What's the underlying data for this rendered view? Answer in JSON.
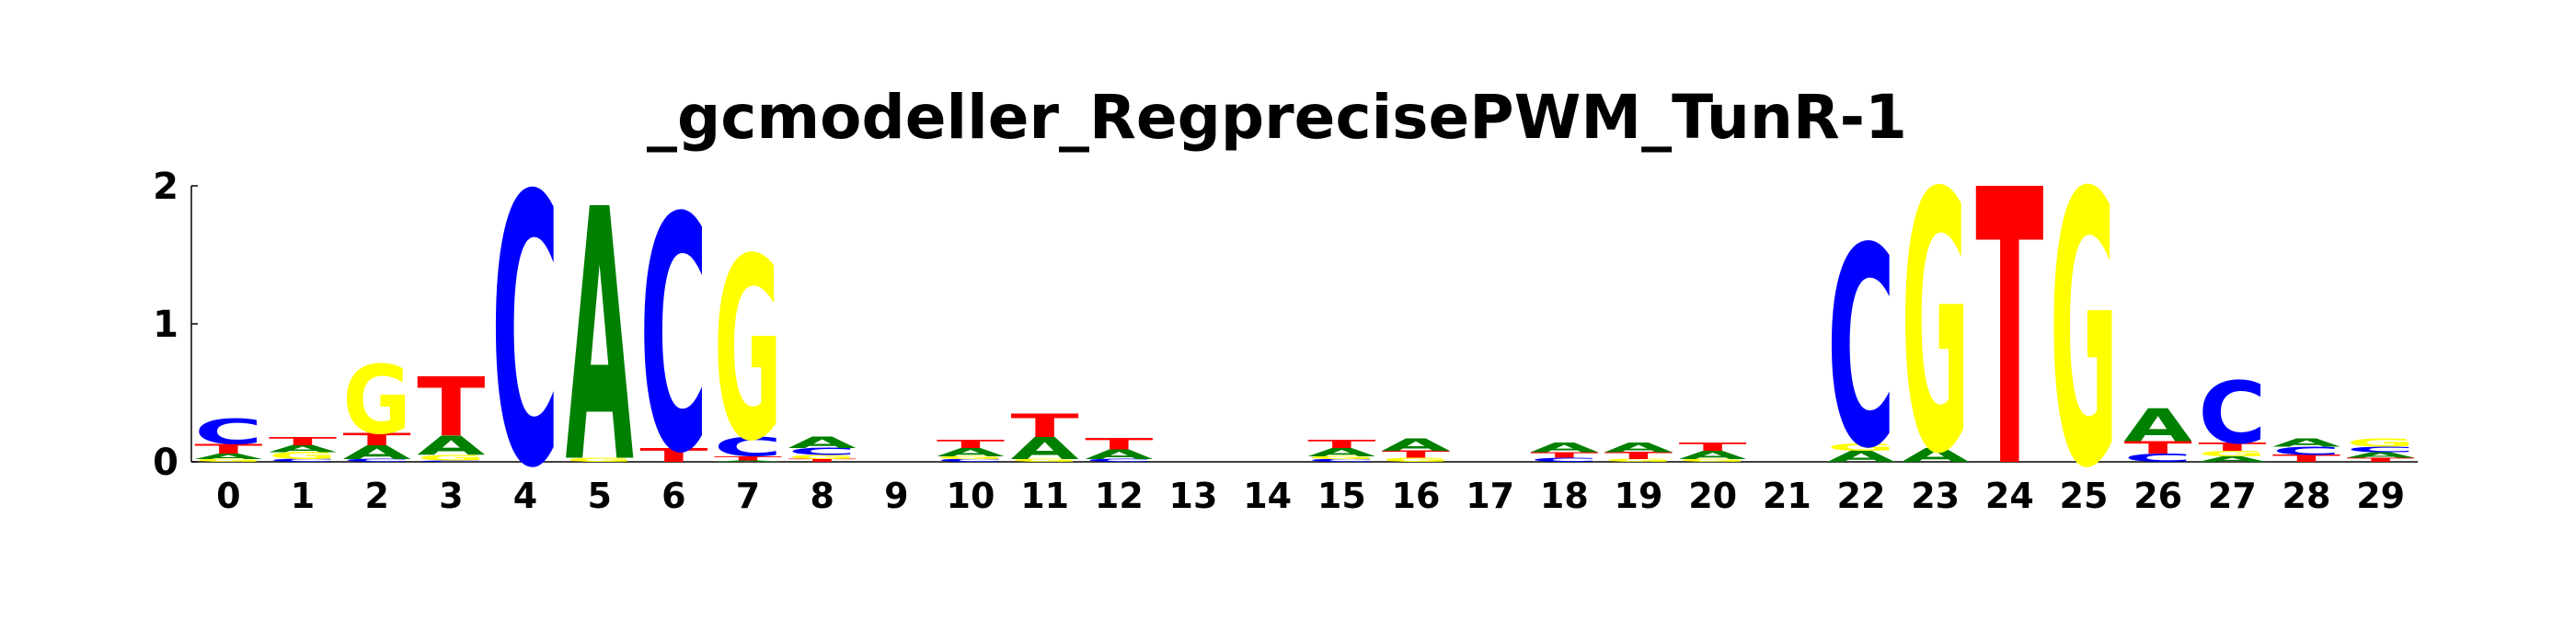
{
  "chart_data": {
    "type": "sequence-logo",
    "title": "_gcmodeller_RegprecisePWM_TunR-1",
    "ylim": [
      0,
      2
    ],
    "y_ticks": [
      "0",
      "1",
      "2"
    ],
    "x_ticks": [
      "0",
      "1",
      "2",
      "3",
      "4",
      "5",
      "6",
      "7",
      "8",
      "9",
      "10",
      "11",
      "12",
      "13",
      "14",
      "15",
      "16",
      "17",
      "18",
      "19",
      "20",
      "21",
      "22",
      "23",
      "24",
      "25",
      "26",
      "27",
      "28",
      "29"
    ],
    "colors": {
      "A": "#008000",
      "C": "#0000ff",
      "G": "#ffff00",
      "T": "#ff0000"
    },
    "positions": [
      [
        [
          "G",
          0.02
        ],
        [
          "A",
          0.04
        ],
        [
          "T",
          0.07
        ],
        [
          "C",
          0.18
        ]
      ],
      [
        [
          "C",
          0.02
        ],
        [
          "G",
          0.05
        ],
        [
          "A",
          0.05
        ],
        [
          "T",
          0.06
        ]
      ],
      [
        [
          "C",
          0.02
        ],
        [
          "A",
          0.1
        ],
        [
          "T",
          0.09
        ],
        [
          "G",
          0.5
        ]
      ],
      [
        [
          "C",
          0.01
        ],
        [
          "G",
          0.04
        ],
        [
          "A",
          0.14
        ],
        [
          "T",
          0.43
        ]
      ],
      [
        [
          "C",
          1.96
        ]
      ],
      [
        [
          "G",
          0.03
        ],
        [
          "A",
          1.83
        ]
      ],
      [
        [
          "T",
          0.1
        ],
        [
          "C",
          1.7
        ]
      ],
      [
        [
          "A",
          0.01
        ],
        [
          "T",
          0.03
        ],
        [
          "C",
          0.14
        ],
        [
          "G",
          1.32
        ]
      ],
      [
        [
          "T",
          0.02
        ],
        [
          "G",
          0.03
        ],
        [
          "C",
          0.05
        ],
        [
          "A",
          0.08
        ]
      ],
      [],
      [
        [
          "C",
          0.02
        ],
        [
          "G",
          0.02
        ],
        [
          "A",
          0.06
        ],
        [
          "T",
          0.06
        ]
      ],
      [
        [
          "G",
          0.02
        ],
        [
          "A",
          0.16
        ],
        [
          "T",
          0.17
        ]
      ],
      [
        [
          "C",
          0.02
        ],
        [
          "A",
          0.07
        ],
        [
          "T",
          0.08
        ]
      ],
      [],
      [],
      [
        [
          "C",
          0.02
        ],
        [
          "G",
          0.02
        ],
        [
          "A",
          0.06
        ],
        [
          "T",
          0.06
        ]
      ],
      [
        [
          "G",
          0.03
        ],
        [
          "T",
          0.05
        ],
        [
          "A",
          0.09
        ]
      ],
      [],
      [
        [
          "C",
          0.03
        ],
        [
          "T",
          0.04
        ],
        [
          "A",
          0.07
        ]
      ],
      [
        [
          "G",
          0.02
        ],
        [
          "T",
          0.05
        ],
        [
          "A",
          0.07
        ]
      ],
      [
        [
          "G",
          0.02
        ],
        [
          "A",
          0.06
        ],
        [
          "T",
          0.06
        ]
      ],
      [],
      [
        [
          "A",
          0.08
        ],
        [
          "G",
          0.05
        ],
        [
          "C",
          1.45
        ]
      ],
      [
        [
          "A",
          0.1
        ],
        [
          "G",
          1.88
        ]
      ],
      [
        [
          "T",
          2.0
        ]
      ],
      [
        [
          "G",
          1.98
        ]
      ],
      [
        [
          "C",
          0.06
        ],
        [
          "T",
          0.09
        ],
        [
          "A",
          0.24
        ]
      ],
      [
        [
          "A",
          0.04
        ],
        [
          "G",
          0.04
        ],
        [
          "T",
          0.06
        ],
        [
          "C",
          0.45
        ]
      ],
      [
        [
          "T",
          0.05
        ],
        [
          "C",
          0.06
        ],
        [
          "A",
          0.06
        ]
      ],
      [
        [
          "T",
          0.03
        ],
        [
          "A",
          0.04
        ],
        [
          "C",
          0.04
        ],
        [
          "G",
          0.06
        ]
      ]
    ]
  }
}
